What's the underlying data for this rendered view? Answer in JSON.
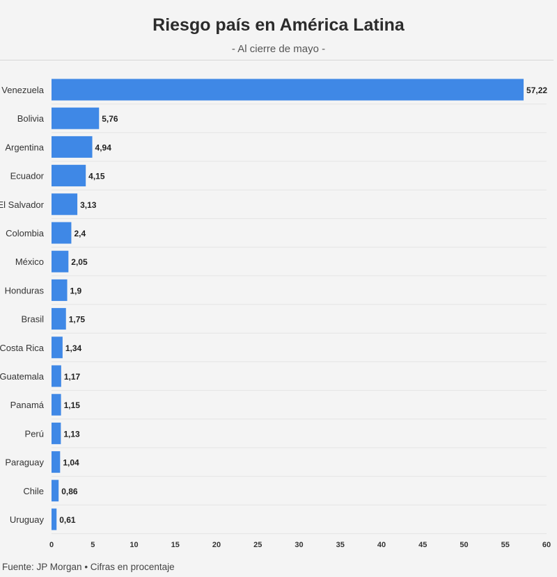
{
  "header": {
    "title": "Riesgo país en América Latina",
    "subtitle": "- Al cierre de mayo -"
  },
  "footer": {
    "source": "Fuente: JP Morgan • Cifras en procentaje"
  },
  "colors": {
    "bar": "#3f88e6",
    "grid": "#e4e4e4",
    "background": "#f4f4f4"
  },
  "chart_data": {
    "type": "bar",
    "orientation": "horizontal",
    "categories": [
      "Venezuela",
      "Bolivia",
      "Argentina",
      "Ecuador",
      "El Salvador",
      "Colombia",
      "México",
      "Honduras",
      "Brasil",
      "Costa Rica",
      "Guatemala",
      "Panamá",
      "Perú",
      "Paraguay",
      "Chile",
      "Uruguay"
    ],
    "values": [
      57.22,
      5.76,
      4.94,
      4.15,
      3.13,
      2.4,
      2.05,
      1.9,
      1.75,
      1.34,
      1.17,
      1.15,
      1.13,
      1.04,
      0.86,
      0.61
    ],
    "value_labels": [
      "57,22",
      "5,76",
      "4,94",
      "4,15",
      "3,13",
      "2,4",
      "2,05",
      "1,9",
      "1,75",
      "1,34",
      "1,17",
      "1,15",
      "1,13",
      "1,04",
      "0,86",
      "0,61"
    ],
    "xlim": [
      0,
      60
    ],
    "xticks": [
      0,
      5,
      10,
      15,
      20,
      25,
      30,
      35,
      40,
      45,
      50,
      55,
      60
    ],
    "grid": true
  }
}
